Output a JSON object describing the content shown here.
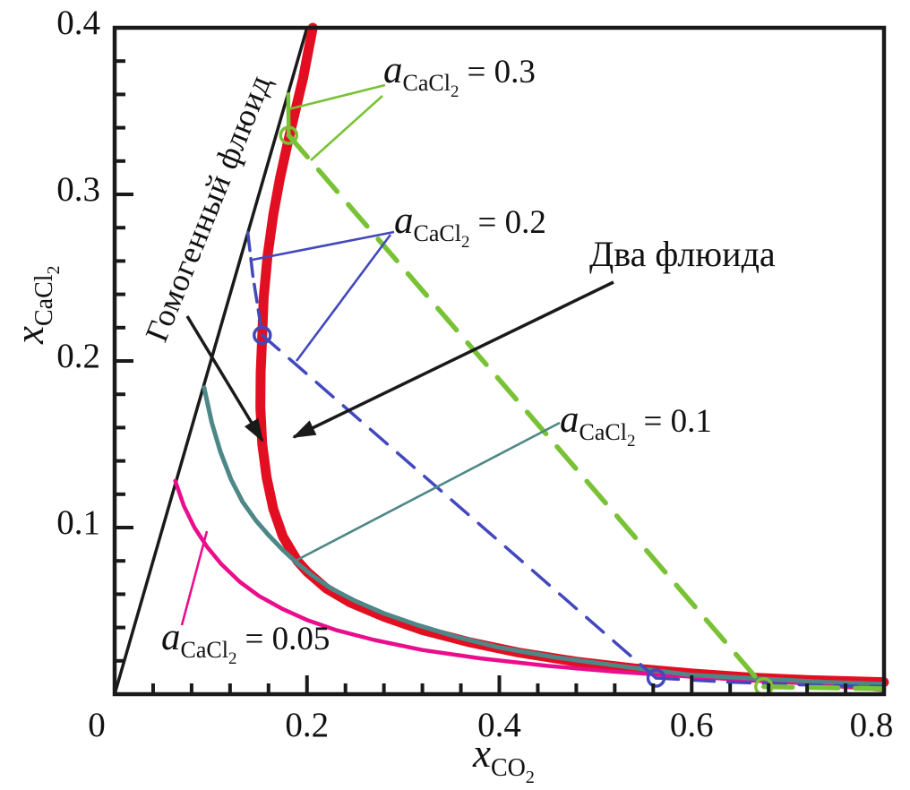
{
  "chart_data": {
    "type": "line",
    "title": "",
    "xlabel": "x_CO2",
    "ylabel": "x_CaCl2",
    "xlim": [
      0,
      0.8
    ],
    "ylim": [
      0,
      0.4
    ],
    "grid": false,
    "legend": "none",
    "x_tick_labels": [
      {
        "label": "0",
        "value": 0
      },
      {
        "label": "0.2",
        "value": 0.2
      },
      {
        "label": "0.4",
        "value": 0.4
      },
      {
        "label": "0.6",
        "value": 0.6
      },
      {
        "label": "0.8",
        "value": 0.8
      }
    ],
    "y_tick_labels": [
      {
        "label": "0.1",
        "value": 0.1
      },
      {
        "label": "0.2",
        "value": 0.2
      },
      {
        "label": "0.3",
        "value": 0.3
      },
      {
        "label": "0.4",
        "value": 0.4
      }
    ],
    "x_minor_step": 0.04,
    "y_minor_step": 0.02,
    "colors": {
      "black": "#1a1a1a",
      "red": "#e10f21",
      "teal": "#4e8787",
      "pink": "#ea0d8c",
      "blue": "#4348bd",
      "green": "#79c235"
    },
    "series": [
      {
        "name": "saturation-boundary",
        "color_key": "black",
        "style": "solid",
        "width": 3.5,
        "points": [
          [
            0,
            0
          ],
          [
            0.2,
            0.4
          ]
        ]
      },
      {
        "name": "solvus-two-fluid-boundary",
        "color_key": "red",
        "style": "solid",
        "width": 11,
        "points": [
          [
            0.206,
            0.4
          ],
          [
            0.196,
            0.37
          ],
          [
            0.187,
            0.348
          ],
          [
            0.18,
            0.331
          ],
          [
            0.172,
            0.31
          ],
          [
            0.165,
            0.288
          ],
          [
            0.159,
            0.263
          ],
          [
            0.155,
            0.238
          ],
          [
            0.1535,
            0.2155
          ],
          [
            0.1518,
            0.193
          ],
          [
            0.1515,
            0.172
          ],
          [
            0.1535,
            0.15
          ],
          [
            0.158,
            0.13
          ],
          [
            0.165,
            0.111
          ],
          [
            0.175,
            0.0945
          ],
          [
            0.19,
            0.08
          ],
          [
            0.2,
            0.0735
          ],
          [
            0.22,
            0.0635
          ],
          [
            0.245,
            0.055
          ],
          [
            0.28,
            0.0465
          ],
          [
            0.32,
            0.0385
          ],
          [
            0.37,
            0.031
          ],
          [
            0.42,
            0.025
          ],
          [
            0.48,
            0.0195
          ],
          [
            0.54,
            0.0155
          ],
          [
            0.6,
            0.0125
          ],
          [
            0.66,
            0.01
          ],
          [
            0.72,
            0.0085
          ],
          [
            0.8,
            0.0072
          ]
        ]
      },
      {
        "name": "activity-contour-0.05",
        "color_key": "pink",
        "style": "solid",
        "width": 4.5,
        "points": [
          [
            0.063,
            0.128
          ],
          [
            0.072,
            0.113
          ],
          [
            0.083,
            0.1
          ],
          [
            0.096,
            0.0885
          ],
          [
            0.111,
            0.078
          ],
          [
            0.13,
            0.0675
          ],
          [
            0.15,
            0.059
          ],
          [
            0.175,
            0.051
          ],
          [
            0.2,
            0.0445
          ],
          [
            0.23,
            0.0385
          ],
          [
            0.27,
            0.0325
          ],
          [
            0.32,
            0.0265
          ],
          [
            0.38,
            0.0215
          ],
          [
            0.45,
            0.017
          ],
          [
            0.52,
            0.0135
          ],
          [
            0.6,
            0.0105
          ],
          [
            0.7,
            0.0072
          ],
          [
            0.8,
            0.0025
          ]
        ]
      },
      {
        "name": "activity-contour-0.1",
        "color_key": "teal",
        "style": "solid",
        "width": 5,
        "points": [
          [
            0.093,
            0.184
          ],
          [
            0.101,
            0.163
          ],
          [
            0.11,
            0.1455
          ],
          [
            0.121,
            0.129
          ],
          [
            0.133,
            0.1155
          ],
          [
            0.1465,
            0.1045
          ],
          [
            0.16,
            0.0955
          ],
          [
            0.175,
            0.0865
          ],
          [
            0.19,
            0.0785
          ],
          [
            0.205,
            0.0715
          ],
          [
            0.225,
            0.0635
          ],
          [
            0.25,
            0.056
          ],
          [
            0.28,
            0.0485
          ],
          [
            0.315,
            0.0415
          ],
          [
            0.355,
            0.0345
          ],
          [
            0.4,
            0.028
          ],
          [
            0.46,
            0.022
          ],
          [
            0.53,
            0.0165
          ],
          [
            0.6,
            0.0115
          ],
          [
            0.68,
            0.009
          ],
          [
            0.74,
            0.0072
          ],
          [
            0.8,
            0.006
          ]
        ]
      },
      {
        "name": "activity-contour-0.2-upper",
        "color_key": "blue",
        "style": "dashed",
        "width": 3.5,
        "dash": "20 9",
        "points": [
          [
            0.1385,
            0.277
          ],
          [
            0.1435,
            0.252
          ],
          [
            0.1485,
            0.2335
          ],
          [
            0.1535,
            0.2155
          ]
        ]
      },
      {
        "name": "activity-contour-0.2-tie-line",
        "color_key": "blue",
        "style": "dashed",
        "width": 3.5,
        "dash": "25 15",
        "points": [
          [
            0.1535,
            0.2155
          ],
          [
            0.563,
            0.0097
          ]
        ]
      },
      {
        "name": "activity-contour-0.2-lower",
        "color_key": "blue",
        "style": "dashed",
        "width": 3.5,
        "dash": "25 15",
        "points": [
          [
            0.563,
            0.0097
          ],
          [
            0.64,
            0.0072
          ],
          [
            0.72,
            0.0055
          ],
          [
            0.8,
            0.0045
          ]
        ]
      },
      {
        "name": "activity-contour-0.3-upper",
        "color_key": "green",
        "style": "solid",
        "width": 4.5,
        "points": [
          [
            0.1805,
            0.36
          ],
          [
            0.181,
            0.3355
          ]
        ]
      },
      {
        "name": "activity-contour-0.3-tie-line",
        "color_key": "green",
        "style": "dashed",
        "width": 5.5,
        "dash": "32 19",
        "points": [
          [
            0.181,
            0.3355
          ],
          [
            0.675,
            0.0045
          ]
        ]
      },
      {
        "name": "activity-contour-0.3-lower",
        "color_key": "green",
        "style": "dashed",
        "width": 5.5,
        "dash": "32 19",
        "points": [
          [
            0.675,
            0.0045
          ],
          [
            0.74,
            0.0038
          ],
          [
            0.8,
            0.0032
          ]
        ]
      }
    ],
    "markers": [
      {
        "name": "two-fluid-point-a0.3-left",
        "color_key": "green",
        "x": 0.181,
        "y": 0.3355
      },
      {
        "name": "two-fluid-point-a0.3-right",
        "color_key": "green",
        "x": 0.675,
        "y": 0.0045
      },
      {
        "name": "two-fluid-point-a0.2-left",
        "color_key": "blue",
        "x": 0.1535,
        "y": 0.2155
      },
      {
        "name": "two-fluid-point-a0.2-right",
        "color_key": "blue",
        "x": 0.563,
        "y": 0.0097
      }
    ],
    "axis_titles": {
      "x": {
        "var": "x",
        "sub": "CO",
        "subsub": "2"
      },
      "y": {
        "var": "x",
        "sub": "CaCl",
        "subsub": "2"
      }
    },
    "annotations": {
      "homogeneous_fluid": "Гомогенный флюид",
      "two_fluids": "Два флюида",
      "a03": {
        "var": "a",
        "sub": "CaCl",
        "subsub": "2",
        "eq": "= 0.3"
      },
      "a02": {
        "var": "a",
        "sub": "CaCl",
        "subsub": "2",
        "eq": "= 0.2"
      },
      "a01": {
        "var": "a",
        "sub": "CaCl",
        "subsub": "2",
        "eq": "= 0.1"
      },
      "a005": {
        "var": "a",
        "sub": "CaCl",
        "subsub": "2",
        "eq": "= 0.05"
      }
    }
  }
}
